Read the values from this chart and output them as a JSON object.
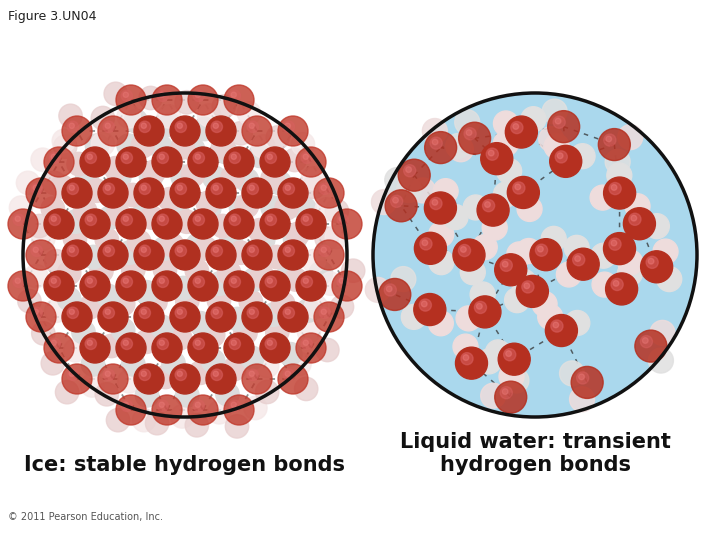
{
  "figure_label": "Figure 3.UN04",
  "caption_left": "Ice: stable hydrogen bonds",
  "caption_right": "Liquid water: transient\nhydrogen bonds",
  "copyright": "© 2011 Pearson Education, Inc.",
  "bg_color": "#ffffff",
  "ice_bg": "#ffffff",
  "liquid_bg": "#aad8ed",
  "circle_edge_color": "#111111",
  "circle_lw": 2.5,
  "caption_fontsize": 15,
  "label_fontsize": 9,
  "copyright_fontsize": 7
}
